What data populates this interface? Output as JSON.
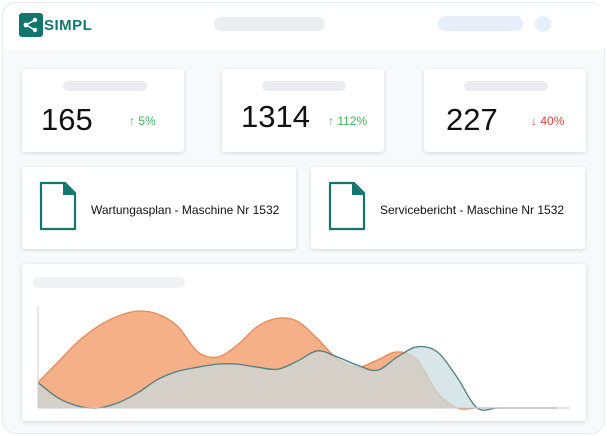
{
  "header": {
    "brand": "SIMPL",
    "colors": {
      "brand": "#13766c"
    }
  },
  "stats": [
    {
      "value": "165",
      "change": "5%",
      "direction": "up"
    },
    {
      "value": "1314",
      "change": "112%",
      "direction": "up"
    },
    {
      "value": "227",
      "change": "40%",
      "direction": "down"
    }
  ],
  "documents": [
    {
      "label": "Wartungasplan - Maschine Nr 1532",
      "icon": "document-icon"
    },
    {
      "label": "Servicebericht - Maschine Nr 1532",
      "icon": "document-icon"
    }
  ],
  "chart_data": {
    "type": "area",
    "title": "",
    "xlabel": "",
    "ylabel": "",
    "grid": false,
    "x": [
      0,
      0.5,
      1,
      1.5,
      2,
      2.5,
      3,
      3.5,
      4,
      4.5,
      5,
      5.5,
      6,
      6.5,
      7,
      7.5,
      8,
      8.5,
      9,
      9.5,
      10,
      10.5,
      11,
      11.5,
      12,
      12.5,
      13
    ],
    "ylim": [
      0,
      100
    ],
    "series": [
      {
        "color": "#f4a77a",
        "values": [
          25,
          45,
          65,
          80,
          90,
          95,
          92,
          80,
          55,
          50,
          62,
          80,
          88,
          85,
          68,
          48,
          40,
          47,
          55,
          47,
          15,
          0,
          0,
          0,
          0,
          0,
          0
        ]
      },
      {
        "color": "#c9dde0",
        "values": [
          25,
          10,
          2,
          0,
          5,
          15,
          28,
          36,
          40,
          43,
          43,
          40,
          38,
          46,
          56,
          50,
          42,
          37,
          50,
          60,
          55,
          30,
          0,
          0,
          0,
          0,
          0
        ]
      }
    ]
  }
}
